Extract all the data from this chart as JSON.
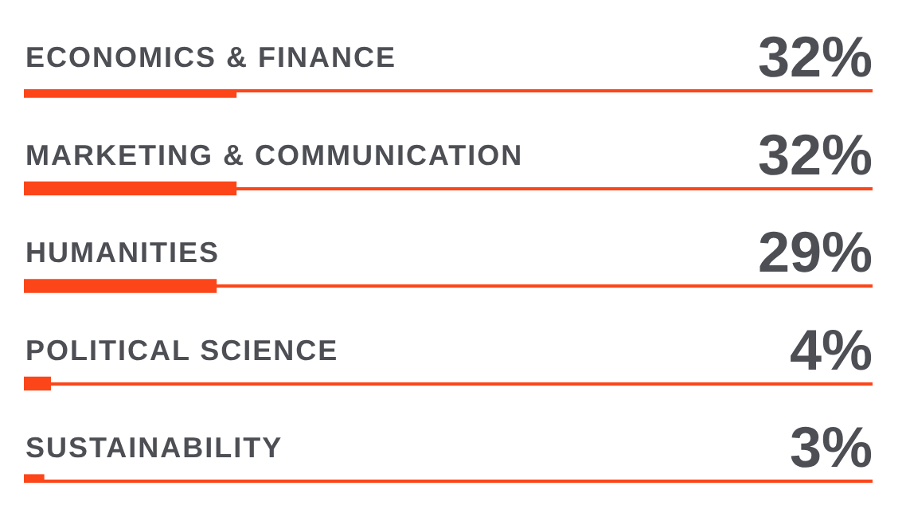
{
  "chart_data": {
    "type": "bar",
    "orientation": "horizontal",
    "categories": [
      "ECONOMICS & FINANCE",
      "MARKETING & COMMUNICATION",
      "HUMANITIES",
      "POLITICAL SCIENCE",
      "SUSTAINABILITY"
    ],
    "values": [
      32,
      32,
      29,
      4,
      3
    ],
    "value_labels": [
      "32%",
      "32%",
      "29%",
      "4%",
      "3%"
    ],
    "color": "#fc4619",
    "xlim": [
      0,
      128
    ],
    "legend": false,
    "grid": "y"
  }
}
